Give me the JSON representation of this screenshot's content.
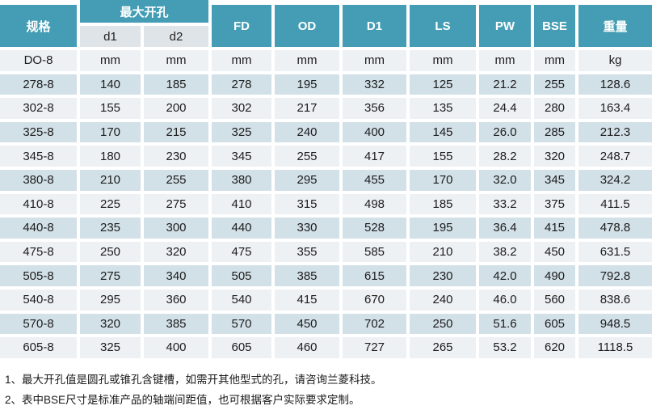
{
  "colors": {
    "header_bg": "#449DB4",
    "subheader_bg": "#DEE4E8",
    "row_dark": "#D2E0E8",
    "row_light": "#EDF1F4",
    "text": "#1C1C1C"
  },
  "table": {
    "header": {
      "spec": "规格",
      "max_bore_group": "最大开孔",
      "sub": [
        "d1",
        "d2"
      ],
      "cols": [
        "FD",
        "OD",
        "D1",
        "LS",
        "PW",
        "BSE",
        "重量"
      ]
    },
    "units_row": [
      "DO-8",
      "mm",
      "mm",
      "mm",
      "mm",
      "mm",
      "mm",
      "mm",
      "mm",
      "kg"
    ],
    "rows": [
      [
        "278-8",
        "140",
        "185",
        "278",
        "195",
        "332",
        "125",
        "21.2",
        "255",
        "128.6"
      ],
      [
        "302-8",
        "155",
        "200",
        "302",
        "217",
        "356",
        "135",
        "24.4",
        "280",
        "163.4"
      ],
      [
        "325-8",
        "170",
        "215",
        "325",
        "240",
        "400",
        "145",
        "26.0",
        "285",
        "212.3"
      ],
      [
        "345-8",
        "180",
        "230",
        "345",
        "255",
        "417",
        "155",
        "28.2",
        "320",
        "248.7"
      ],
      [
        "380-8",
        "210",
        "255",
        "380",
        "295",
        "455",
        "170",
        "32.0",
        "345",
        "324.2"
      ],
      [
        "410-8",
        "225",
        "275",
        "410",
        "315",
        "498",
        "185",
        "33.2",
        "375",
        "411.5"
      ],
      [
        "440-8",
        "235",
        "300",
        "440",
        "330",
        "528",
        "195",
        "36.4",
        "415",
        "478.8"
      ],
      [
        "475-8",
        "250",
        "320",
        "475",
        "355",
        "585",
        "210",
        "38.2",
        "450",
        "631.5"
      ],
      [
        "505-8",
        "275",
        "340",
        "505",
        "385",
        "615",
        "230",
        "42.0",
        "490",
        "792.8"
      ],
      [
        "540-8",
        "295",
        "360",
        "540",
        "415",
        "670",
        "240",
        "46.0",
        "560",
        "838.6"
      ],
      [
        "570-8",
        "320",
        "385",
        "570",
        "450",
        "702",
        "250",
        "51.6",
        "605",
        "948.5"
      ],
      [
        "605-8",
        "325",
        "400",
        "605",
        "460",
        "727",
        "265",
        "53.2",
        "620",
        "1118.5"
      ]
    ]
  },
  "notes": [
    "1、最大开孔值是圆孔或锥孔含键槽，如需开其他型式的孔，请咨询兰菱科技。",
    "2、表中BSE尺寸是标准产品的轴端间距值，也可根据客户实际要求定制。"
  ]
}
